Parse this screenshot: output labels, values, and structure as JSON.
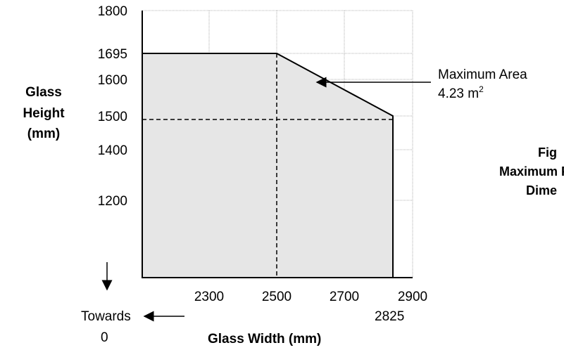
{
  "chart_data": {
    "type": "area",
    "title": "",
    "ylabel_lines": [
      "Glass",
      "Height",
      "(mm)"
    ],
    "xlabel": "Glass Width (mm)",
    "x_ticks": [
      "2300",
      "2500",
      "2700",
      "2900"
    ],
    "x_extra_tick": "2825",
    "y_ticks": [
      "1200",
      "1400",
      "1500",
      "1600",
      "1695",
      "1800"
    ],
    "grid": true,
    "boundary": [
      {
        "x": 2100,
        "y": 1000
      },
      {
        "x": 2100,
        "y": 1695
      },
      {
        "x": 2500,
        "y": 1695
      },
      {
        "x": 2825,
        "y": 1500
      },
      {
        "x": 2825,
        "y": 1000
      }
    ],
    "dashed_lines": [
      {
        "from": {
          "x": 2500,
          "y": 1695
        },
        "to": {
          "x": 2500,
          "y": 1000
        }
      },
      {
        "from": {
          "x": 2100,
          "y": 1490
        },
        "to": {
          "x": 2825,
          "y": 1490
        }
      }
    ],
    "annotation": {
      "line1": "Maximum Area",
      "line2": "4.23 m",
      "sup": "2"
    },
    "towards": {
      "label": "Towards",
      "value": "0"
    },
    "figure_caption": [
      "Fig",
      "Maximum P",
      "Dime"
    ]
  }
}
